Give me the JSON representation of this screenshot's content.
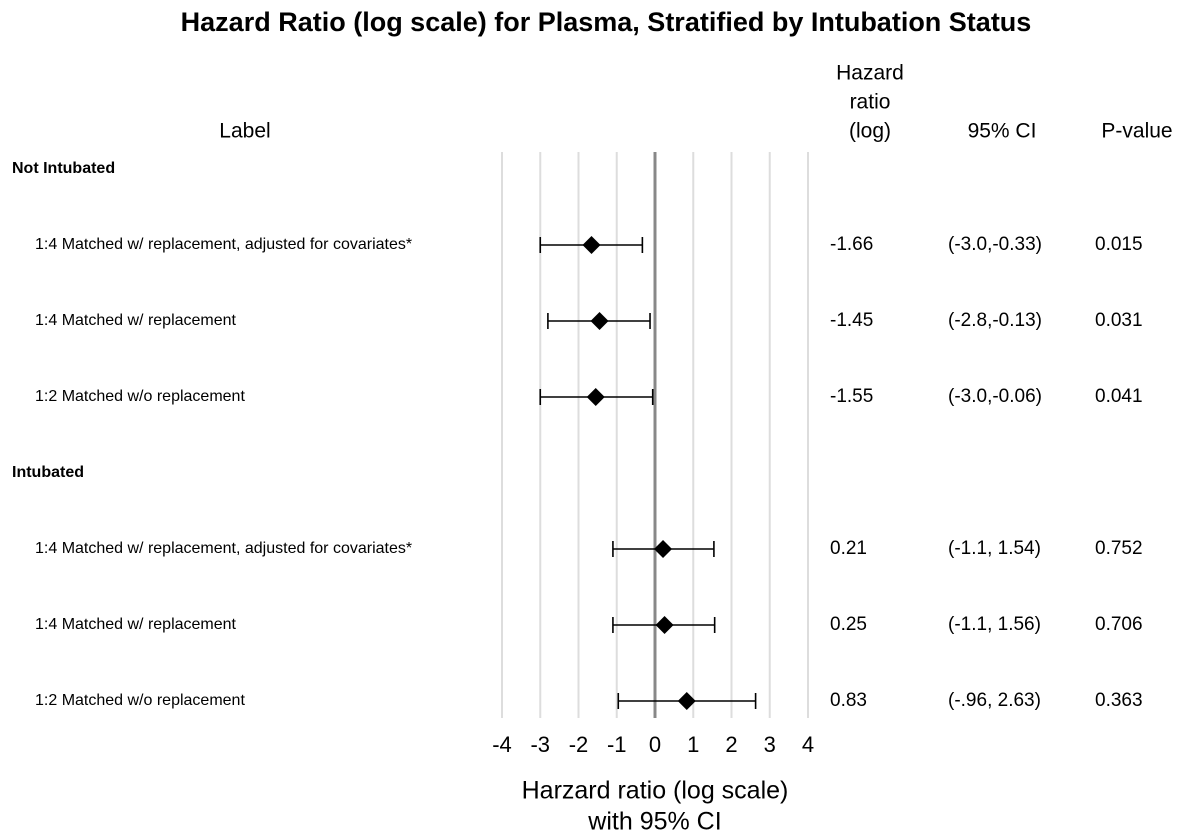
{
  "chart_data": {
    "type": "forest",
    "title": "Hazard Ratio (log scale) for Plasma, Stratified by Intubation Status",
    "column_headers": {
      "label": "Label",
      "estimate": [
        "Hazard",
        "ratio",
        "(log)"
      ],
      "ci": "95% CI",
      "p": "P-value"
    },
    "x_label": [
      "Harzard ratio (log scale)",
      "with 95% CI"
    ],
    "xlim": [
      -4,
      4
    ],
    "xticks": [
      -4,
      -3,
      -2,
      -1,
      0,
      1,
      2,
      3,
      4
    ],
    "grid": true,
    "color": "#000000",
    "groups": [
      {
        "name": "Not Intubated",
        "labels": [
          "1:4 Matched w/ replacement, adjusted for covariates*",
          "1:4 Matched w/ replacement",
          "1:2 Matched w/o replacement"
        ],
        "values": [
          -1.66,
          -1.45,
          -1.55
        ],
        "lower": [
          -3.0,
          -2.8,
          -3.0
        ],
        "upper": [
          -0.33,
          -0.13,
          -0.06
        ],
        "ci_labels": [
          "(-3.0,-0.33)",
          "(-2.8,-0.13)",
          "(-3.0,-0.06)"
        ],
        "p_values": [
          0.015,
          0.031,
          0.041
        ]
      },
      {
        "name": "Intubated",
        "labels": [
          "1:4 Matched w/ replacement, adjusted for covariates*",
          "1:4 Matched w/ replacement",
          "1:2 Matched w/o replacement"
        ],
        "values": [
          0.21,
          0.25,
          0.83
        ],
        "lower": [
          -1.1,
          -1.1,
          -0.96
        ],
        "upper": [
          1.54,
          1.56,
          2.63
        ],
        "ci_labels": [
          "(-1.1, 1.54)",
          "(-1.1, 1.56)",
          "(-.96, 2.63)"
        ],
        "p_values": [
          0.752,
          0.706,
          0.363
        ]
      }
    ]
  }
}
